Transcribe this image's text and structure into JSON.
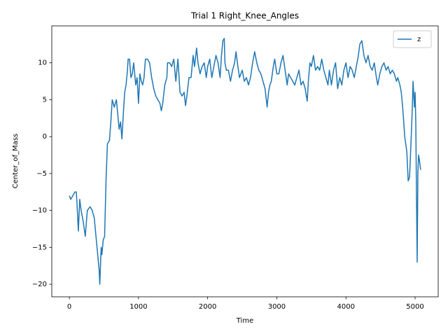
{
  "chart_data": {
    "type": "line",
    "title": "Trial 1 Right_Knee_Angles",
    "x_label": "Time",
    "y_label": "Center_of_Mass",
    "xlim": [
      -254,
      5334
    ],
    "ylim": [
      -21.7,
      15.0
    ],
    "xticks": [
      0,
      1000,
      2000,
      3000,
      4000,
      5000
    ],
    "yticks": [
      {
        "value": -20,
        "label": "−20"
      },
      {
        "value": -15,
        "label": "−15"
      },
      {
        "value": -10,
        "label": "−10"
      },
      {
        "value": -5,
        "label": "−5"
      },
      0,
      5,
      10
    ],
    "legend": "upper right",
    "grid": false,
    "x": [
      0,
      20,
      50,
      80,
      100,
      110,
      130,
      150,
      170,
      200,
      230,
      260,
      300,
      330,
      360,
      400,
      430,
      440,
      460,
      470,
      490,
      510,
      530,
      550,
      580,
      600,
      620,
      650,
      680,
      700,
      720,
      740,
      760,
      780,
      800,
      820,
      840,
      850,
      870,
      890,
      910,
      930,
      960,
      980,
      1000,
      1020,
      1040,
      1060,
      1080,
      1100,
      1130,
      1160,
      1190,
      1220,
      1250,
      1280,
      1310,
      1330,
      1350,
      1380,
      1410,
      1420,
      1450,
      1480,
      1510,
      1540,
      1570,
      1600,
      1630,
      1660,
      1680,
      1700,
      1730,
      1760,
      1790,
      1810,
      1840,
      1860,
      1890,
      1920,
      1950,
      1980,
      2000,
      2030,
      2060,
      2090,
      2120,
      2150,
      2180,
      2200,
      2220,
      2240,
      2250,
      2270,
      2300,
      2330,
      2360,
      2390,
      2410,
      2430,
      2460,
      2500,
      2530,
      2560,
      2590,
      2620,
      2650,
      2680,
      2710,
      2740,
      2770,
      2800,
      2830,
      2860,
      2880,
      2900,
      2920,
      2950,
      2970,
      3000,
      3030,
      3060,
      3090,
      3120,
      3150,
      3170,
      3200,
      3230,
      3260,
      3290,
      3320,
      3350,
      3380,
      3410,
      3440,
      3460,
      3480,
      3500,
      3530,
      3560,
      3590,
      3620,
      3650,
      3680,
      3710,
      3740,
      3760,
      3790,
      3820,
      3850,
      3880,
      3910,
      3940,
      3970,
      4000,
      4030,
      4060,
      4090,
      4120,
      4150,
      4180,
      4200,
      4230,
      4260,
      4290,
      4320,
      4350,
      4380,
      4410,
      4440,
      4460,
      4490,
      4520,
      4550,
      4580,
      4610,
      4640,
      4670,
      4700,
      4730,
      4750,
      4780,
      4800,
      4820,
      4850,
      4880,
      4900,
      4920,
      4940,
      4960,
      4970,
      4990,
      5000,
      5010,
      5020,
      5030,
      5040,
      5050,
      5060,
      5080
    ],
    "series": [
      {
        "name": "z",
        "color": "#1f77b4",
        "values": [
          -8,
          -8.5,
          -8,
          -7.5,
          -7.5,
          -9,
          -12.8,
          -8.5,
          -10,
          -11.5,
          -13.5,
          -10,
          -9.5,
          -10,
          -11,
          -15,
          -18,
          -20,
          -15,
          -16,
          -14,
          -13.5,
          -6,
          -1,
          -0.5,
          2,
          5,
          4,
          5,
          3,
          1,
          2,
          -0.3,
          3,
          6,
          7,
          9,
          10.5,
          10.5,
          8,
          8.5,
          10,
          7,
          8,
          4.5,
          8.5,
          7.5,
          7,
          8,
          10.5,
          10.5,
          10,
          8,
          6.5,
          5.5,
          5,
          4.5,
          3.5,
          4.5,
          7,
          8,
          10,
          10,
          9.5,
          10.5,
          7.5,
          10.5,
          6,
          5.5,
          6,
          4.2,
          5.5,
          8,
          8,
          11,
          9.5,
          12,
          10,
          8.5,
          9.5,
          10,
          8,
          9.5,
          10.5,
          8,
          9.5,
          11,
          10,
          8,
          11,
          13,
          13.3,
          10,
          9,
          9,
          7.5,
          9,
          10,
          11.5,
          10,
          8,
          9,
          7.5,
          8,
          7,
          8,
          10,
          11.5,
          10,
          9,
          8.5,
          7.5,
          6.5,
          4,
          6,
          7,
          7.5,
          9.5,
          10.5,
          8.5,
          8.5,
          10,
          11,
          9,
          7,
          8.5,
          8,
          7.5,
          7,
          8,
          9,
          7,
          7.5,
          6.5,
          4.8,
          8,
          10,
          9.5,
          11,
          9,
          9.5,
          9,
          10.5,
          9,
          8,
          7,
          9,
          7,
          9,
          10,
          6.5,
          8,
          7,
          9,
          10,
          8,
          9.5,
          9,
          8,
          9.5,
          11,
          12.5,
          13,
          11,
          10,
          11,
          9.5,
          9,
          10,
          8,
          7,
          8.5,
          9.5,
          10,
          9,
          9.5,
          8.5,
          9,
          8.5,
          7.5,
          8,
          7,
          6,
          4,
          0,
          -2,
          -6,
          -5.5,
          -1,
          4,
          7.5,
          4,
          6,
          2,
          -8,
          -17,
          -5,
          -2.5,
          -3,
          -4.5
        ]
      }
    ]
  }
}
